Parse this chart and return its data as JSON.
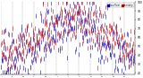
{
  "title": "",
  "background_color": "#ffffff",
  "ylim": [
    18,
    100
  ],
  "y_ticks": [
    20,
    30,
    40,
    50,
    60,
    70,
    80,
    90,
    100
  ],
  "n_points": 365,
  "blue_color": "#0000cc",
  "red_color": "#cc0000",
  "legend_blue": "Dew Point",
  "legend_red": "Humidity",
  "grid_color": "#888888",
  "seed": 42,
  "humidity_mean": 62,
  "humidity_amp": 18,
  "humidity_noise": 14,
  "dewpoint_mean": 55,
  "dewpoint_amp": 22,
  "dewpoint_noise": 16,
  "bar_linewidth": 0.4,
  "month_starts": [
    0,
    31,
    59,
    90,
    120,
    151,
    181,
    212,
    243,
    273,
    304,
    334
  ],
  "month_labels": [
    "J",
    "F",
    "M",
    "A",
    "M",
    "J",
    "J",
    "A",
    "S",
    "O",
    "N",
    "D"
  ]
}
